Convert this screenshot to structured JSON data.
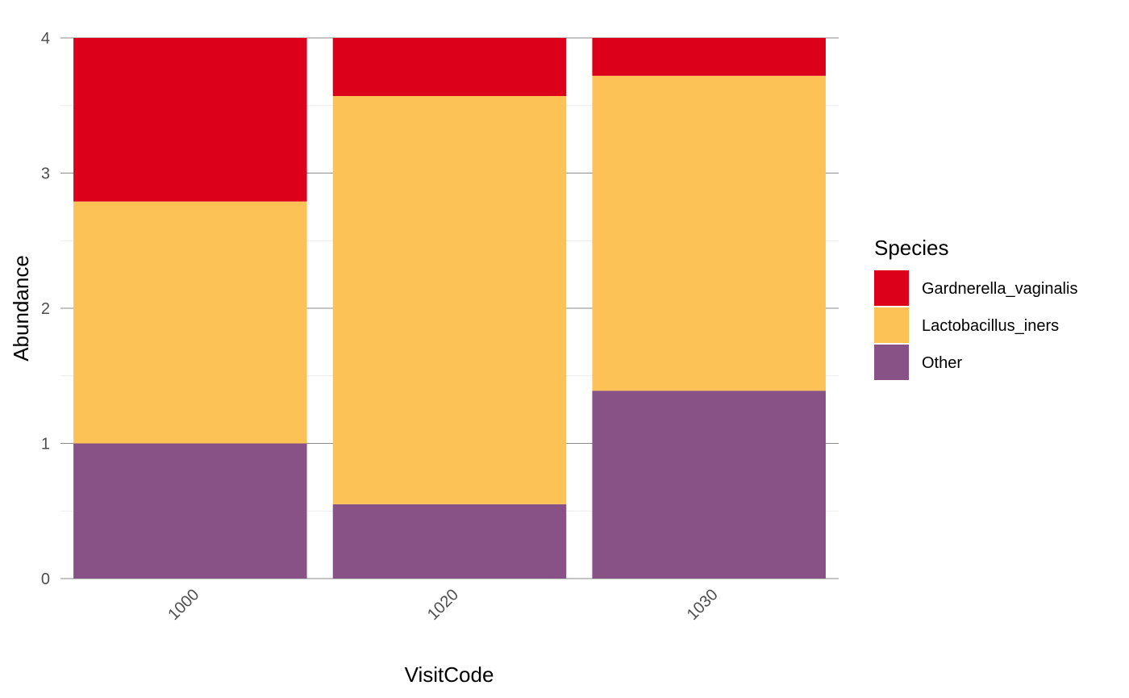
{
  "chart_data": {
    "type": "bar",
    "stacked": true,
    "xlabel": "VisitCode",
    "ylabel": "Abundance",
    "categories": [
      "1000",
      "1020",
      "1030"
    ],
    "ylim": [
      0,
      4
    ],
    "yticks": [
      "0",
      "1",
      "2",
      "3",
      "4"
    ],
    "grid": true,
    "legend_position": "right",
    "legend_title": "Species",
    "series": [
      {
        "name": "Other",
        "color": "#885286",
        "values": [
          1.0,
          0.55,
          1.39
        ]
      },
      {
        "name": "Lactobacillus_iners",
        "color": "#FDC256",
        "values": [
          1.79,
          3.02,
          2.33
        ]
      },
      {
        "name": "Gardnerella_vaginalis",
        "color": "#DC001B",
        "values": [
          1.21,
          0.43,
          0.28
        ]
      }
    ],
    "legend_order": [
      "Gardnerella_vaginalis",
      "Lactobacillus_iners",
      "Other"
    ]
  }
}
